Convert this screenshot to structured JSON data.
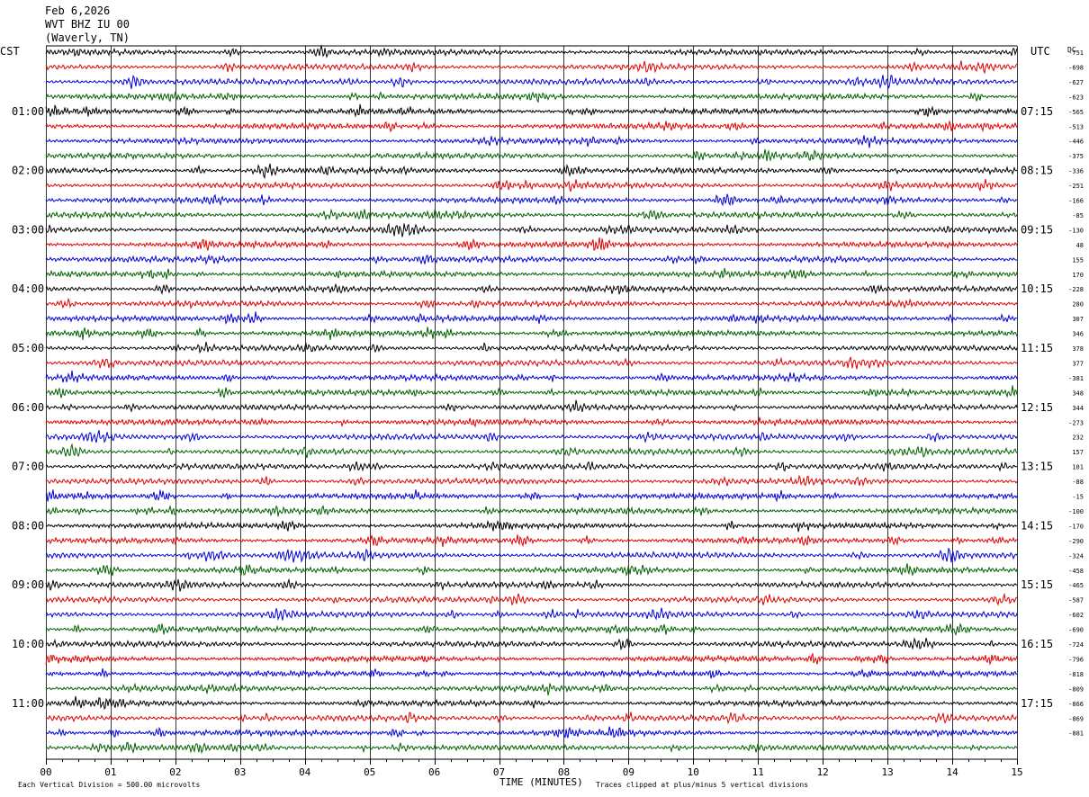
{
  "header": {
    "date": "Feb 6,2026",
    "station": "WVT BHZ IU 00",
    "location": "(Waverly, TN)"
  },
  "left_zone_label": "CST",
  "right_zone_label": "UTC",
  "dc_label": "DC",
  "xlabel": "TIME (MINUTES)",
  "footer": {
    "left": "Each Vertical Division =  500.00 microvolts",
    "right": "Traces clipped at plus/minus 5 vertical divisions"
  },
  "colors": {
    "cycle": [
      "#000000",
      "#e00000",
      "#0000d8",
      "#006000"
    ],
    "grid": "#000000",
    "text": "#000000"
  },
  "chart_data": {
    "type": "line",
    "title": "",
    "x_ticks": [
      "00",
      "01",
      "02",
      "03",
      "04",
      "05",
      "06",
      "07",
      "08",
      "09",
      "10",
      "11",
      "12",
      "13",
      "14",
      "15"
    ],
    "xlim": [
      0,
      15
    ],
    "trace_count": 48,
    "hour_labels_left": [
      "01:00",
      "02:00",
      "03:00",
      "04:00",
      "05:00",
      "06:00",
      "07:00",
      "08:00",
      "09:00",
      "10:00",
      "11:00"
    ],
    "hour_labels_right": [
      "07:15",
      "08:15",
      "09:15",
      "10:15",
      "11:15",
      "12:15",
      "13:15",
      "14:15",
      "15:15",
      "16:15",
      "17:15"
    ],
    "dc_offsets": [
      "-751",
      "-698",
      "-627",
      "-623",
      "-565",
      "-513",
      "-446",
      "-375",
      "-336",
      "-251",
      "-166",
      "-85",
      "-130",
      "48",
      "155",
      "170",
      "-228",
      "280",
      "307",
      "346",
      "378",
      "377",
      "-381",
      "348",
      "344",
      "-273",
      "232",
      "157",
      "101",
      "-88",
      "-15",
      "-100",
      "-170",
      "-290",
      "-324",
      "-458",
      "-465",
      "-587",
      "-602",
      "-690",
      "-724",
      "-796",
      "-818",
      "-809",
      "-866",
      "-869",
      "-881"
    ]
  }
}
